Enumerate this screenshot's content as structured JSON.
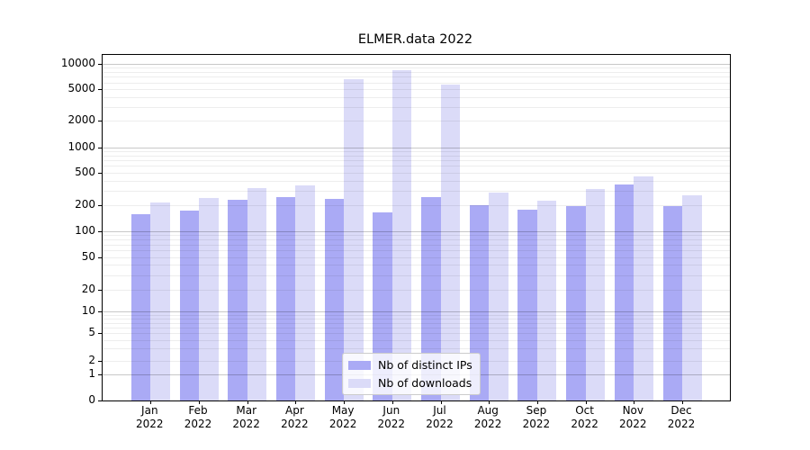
{
  "chart_data": {
    "type": "bar",
    "title": "ELMER.data 2022",
    "categories": [
      "Jan 2022",
      "Feb 2022",
      "Mar 2022",
      "Apr 2022",
      "May 2022",
      "Jun 2022",
      "Jul 2022",
      "Aug 2022",
      "Sep 2022",
      "Oct 2022",
      "Nov 2022",
      "Dec 2022"
    ],
    "x_tick_lines": [
      [
        "Jan",
        "2022"
      ],
      [
        "Feb",
        "2022"
      ],
      [
        "Mar",
        "2022"
      ],
      [
        "Apr",
        "2022"
      ],
      [
        "May",
        "2022"
      ],
      [
        "Jun",
        "2022"
      ],
      [
        "Jul",
        "2022"
      ],
      [
        "Aug",
        "2022"
      ],
      [
        "Sep",
        "2022"
      ],
      [
        "Oct",
        "2022"
      ],
      [
        "Nov",
        "2022"
      ],
      [
        "Dec",
        "2022"
      ]
    ],
    "series": [
      {
        "name": "Nb of distinct IPs",
        "color": "#aaaaf5",
        "values": [
          160,
          176,
          235,
          255,
          240,
          166,
          250,
          204,
          180,
          196,
          356,
          197
        ]
      },
      {
        "name": "Nb of downloads",
        "color": "#dbdbf8",
        "values": [
          215,
          245,
          328,
          350,
          6500,
          8300,
          5700,
          285,
          228,
          316,
          452,
          265
        ]
      }
    ],
    "yscale": "symlog",
    "ylim": [
      0,
      10000
    ],
    "y_tick_labels": [
      "10000",
      "5000",
      "2000",
      "1000",
      "500",
      "200",
      "100",
      "50",
      "20",
      "10",
      "5",
      "2",
      "1",
      "0"
    ],
    "grid": true,
    "legend_position": "lower-center-inside",
    "colors": {
      "distinct_ips": "#aaaaf5",
      "downloads": "#dbdbf8",
      "major_grid": "#c9c9c9",
      "minor_grid": "#ededed"
    }
  }
}
